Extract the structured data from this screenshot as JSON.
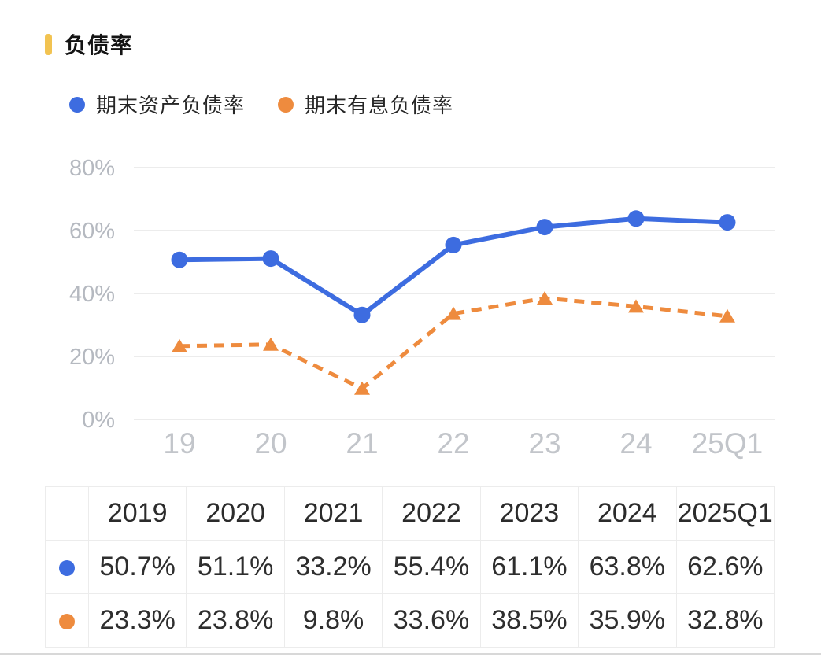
{
  "page": {
    "title": "负债率"
  },
  "legend": [
    {
      "label": "期末资产负债率",
      "color": "#3d6ce0",
      "marker": "circle"
    },
    {
      "label": "期末有息负债率",
      "color": "#ee8b3e",
      "marker": "circle"
    }
  ],
  "chart_data": {
    "type": "line",
    "title": "负债率",
    "categories": [
      "19",
      "20",
      "21",
      "22",
      "23",
      "24",
      "25Q1"
    ],
    "series": [
      {
        "name": "期末资产负债率",
        "color": "#3d6ce0",
        "line_style": "solid",
        "marker": "circle",
        "values": [
          50.7,
          51.1,
          33.2,
          55.4,
          61.1,
          63.8,
          62.6
        ]
      },
      {
        "name": "期末有息负债率",
        "color": "#ee8b3e",
        "line_style": "dashed",
        "marker": "triangle",
        "values": [
          23.3,
          23.8,
          9.8,
          33.6,
          38.5,
          35.9,
          32.8
        ]
      }
    ],
    "ylim": [
      0,
      80
    ],
    "yticks": [
      0,
      20,
      40,
      60,
      80
    ],
    "ytick_labels": [
      "0%",
      "20%",
      "40%",
      "60%",
      "80%"
    ],
    "xlabel": "",
    "ylabel": "",
    "grid": "horizontal",
    "legend_position": "top"
  },
  "table": {
    "header": [
      "",
      "2019",
      "2020",
      "2021",
      "2022",
      "2023",
      "2024",
      "2025Q1"
    ],
    "rows": [
      {
        "series": "期末资产负债率",
        "color": "#3d6ce0",
        "values": [
          "50.7%",
          "51.1%",
          "33.2%",
          "55.4%",
          "61.1%",
          "63.8%",
          "62.6%"
        ]
      },
      {
        "series": "期末有息负债率",
        "color": "#ee8b3e",
        "values": [
          "23.3%",
          "23.8%",
          "9.8%",
          "33.6%",
          "38.5%",
          "35.9%",
          "32.8%"
        ]
      }
    ]
  },
  "colors": {
    "accent_blue": "#3d6ce0",
    "accent_orange": "#ee8b3e",
    "title_bar_yellow": "#f2c351",
    "y_axis_label": "#b5b9c0",
    "x_axis_label": "#c2c5ca",
    "gridline": "#ececec",
    "table_border": "#ececec",
    "text_dark": "#2e2e2e"
  }
}
